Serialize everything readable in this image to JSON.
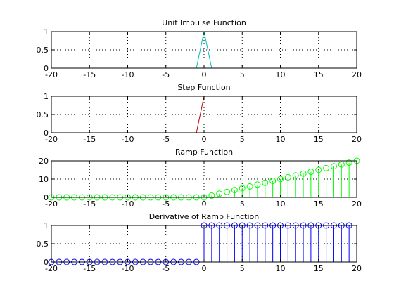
{
  "figure": {
    "background": "#ffffff"
  },
  "chart_data": [
    {
      "type": "line",
      "title": "Unit Impulse Function",
      "xlim": [
        -20,
        20
      ],
      "ylim": [
        0,
        1
      ],
      "xticks": [
        -20,
        -15,
        -10,
        -5,
        0,
        5,
        10,
        15,
        20
      ],
      "xtick_labels": [
        "-20",
        "-15",
        "-10",
        "-5",
        "0",
        "5",
        "10",
        "15",
        "20"
      ],
      "yticks": [
        0,
        0.5,
        1
      ],
      "ytick_labels": [
        "0",
        "0.5",
        "1"
      ],
      "grid": true,
      "color": "#00bfbf",
      "x": [
        -1,
        0,
        1
      ],
      "y": [
        0,
        1,
        0
      ]
    },
    {
      "type": "line",
      "title": "Step Function",
      "xlim": [
        -20,
        20
      ],
      "ylim": [
        0,
        1
      ],
      "xticks": [
        -20,
        -15,
        -10,
        -5,
        0,
        5,
        10,
        15,
        20
      ],
      "xtick_labels": [
        "-20",
        "-15",
        "-10",
        "-5",
        "0",
        "5",
        "10",
        "15",
        "20"
      ],
      "yticks": [
        0,
        0.5,
        1
      ],
      "ytick_labels": [
        "0",
        "0.5",
        "1"
      ],
      "grid": true,
      "color": "#c00000",
      "x": [
        -1,
        0
      ],
      "y": [
        0,
        1
      ]
    },
    {
      "type": "stem",
      "title": "Ramp Function",
      "xlim": [
        -20,
        20
      ],
      "ylim": [
        0,
        20
      ],
      "xticks": [
        -20,
        -15,
        -10,
        -5,
        0,
        5,
        10,
        15,
        20
      ],
      "xtick_labels": [
        "-20",
        "-15",
        "-10",
        "-5",
        "0",
        "5",
        "10",
        "15",
        "20"
      ],
      "yticks": [
        0,
        10,
        20
      ],
      "ytick_labels": [
        "0",
        "10",
        "20"
      ],
      "grid": true,
      "color": "#00ff00",
      "marker": "circle",
      "x": [
        -20,
        -19,
        -18,
        -17,
        -16,
        -15,
        -14,
        -13,
        -12,
        -11,
        -10,
        -9,
        -8,
        -7,
        -6,
        -5,
        -4,
        -3,
        -2,
        -1,
        0,
        1,
        2,
        3,
        4,
        5,
        6,
        7,
        8,
        9,
        10,
        11,
        12,
        13,
        14,
        15,
        16,
        17,
        18,
        19,
        20
      ],
      "y": [
        0,
        0,
        0,
        0,
        0,
        0,
        0,
        0,
        0,
        0,
        0,
        0,
        0,
        0,
        0,
        0,
        0,
        0,
        0,
        0,
        0,
        1,
        2,
        3,
        4,
        5,
        6,
        7,
        8,
        9,
        10,
        11,
        12,
        13,
        14,
        15,
        16,
        17,
        18,
        19,
        20
      ]
    },
    {
      "type": "stem",
      "title": "Derivative of Ramp Function",
      "xlim": [
        -20,
        20
      ],
      "ylim": [
        0,
        1
      ],
      "xticks": [
        -20,
        -15,
        -10,
        -5,
        0,
        5,
        10,
        15,
        20
      ],
      "xtick_labels": [
        "-20",
        "-15",
        "-10",
        "-5",
        "0",
        "5",
        "10",
        "15",
        "20"
      ],
      "yticks": [
        0,
        0.5,
        1
      ],
      "ytick_labels": [
        "0",
        "0.5",
        "1"
      ],
      "grid": true,
      "color": "#0000ff",
      "marker": "circle",
      "x": [
        -20,
        -19,
        -18,
        -17,
        -16,
        -15,
        -14,
        -13,
        -12,
        -11,
        -10,
        -9,
        -8,
        -7,
        -6,
        -5,
        -4,
        -3,
        -2,
        -1,
        0,
        1,
        2,
        3,
        4,
        5,
        6,
        7,
        8,
        9,
        10,
        11,
        12,
        13,
        14,
        15,
        16,
        17,
        18,
        19
      ],
      "y": [
        0,
        0,
        0,
        0,
        0,
        0,
        0,
        0,
        0,
        0,
        0,
        0,
        0,
        0,
        0,
        0,
        0,
        0,
        0,
        0,
        1,
        1,
        1,
        1,
        1,
        1,
        1,
        1,
        1,
        1,
        1,
        1,
        1,
        1,
        1,
        1,
        1,
        1,
        1,
        1
      ]
    }
  ]
}
